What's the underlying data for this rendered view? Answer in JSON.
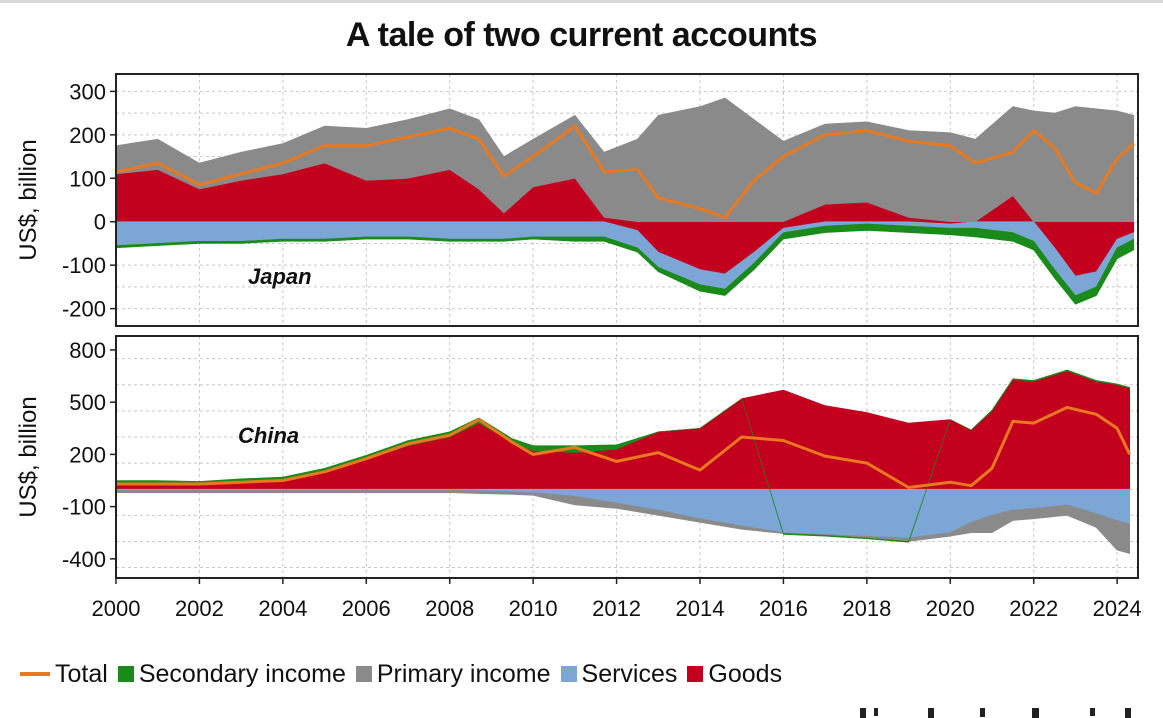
{
  "title": "A tale of two current accounts",
  "colors": {
    "total": "#e8791e",
    "secondary": "#1a8a1a",
    "primary": "#8a8a8a",
    "services": "#7ba6d6",
    "goods": "#c4001f"
  },
  "legend": [
    {
      "key": "total",
      "label": "Total",
      "kind": "line"
    },
    {
      "key": "secondary",
      "label": "Secondary income",
      "kind": "box"
    },
    {
      "key": "primary",
      "label": "Primary income",
      "kind": "box"
    },
    {
      "key": "services",
      "label": "Services",
      "kind": "box"
    },
    {
      "key": "goods",
      "label": "Goods",
      "kind": "box"
    }
  ],
  "chart_data": [
    {
      "type": "area",
      "panel": "Japan",
      "ylabel": "US$, billion",
      "ylim": [
        -240,
        340
      ],
      "yticks": [
        300,
        200,
        100,
        0,
        -100,
        -200
      ],
      "xlim": [
        2000,
        2024.5
      ],
      "xticks": [
        2000,
        2002,
        2004,
        2006,
        2008,
        2010,
        2012,
        2014,
        2016,
        2018,
        2020,
        2022,
        2024
      ],
      "x": [
        2000,
        2001,
        2002,
        2003,
        2004,
        2005,
        2006,
        2007,
        2008,
        2008.7,
        2009.3,
        2010,
        2011,
        2011.7,
        2012.5,
        2013,
        2014,
        2014.6,
        2015.3,
        2016,
        2017,
        2018,
        2019,
        2020,
        2020.6,
        2021.5,
        2022,
        2022.5,
        2023,
        2023.5,
        2024,
        2024.4
      ],
      "goods": [
        110,
        120,
        75,
        95,
        110,
        135,
        95,
        100,
        120,
        75,
        20,
        80,
        100,
        10,
        -20,
        -70,
        -110,
        -120,
        -70,
        -15,
        40,
        45,
        10,
        -5,
        0,
        60,
        0,
        -60,
        -125,
        -115,
        -40,
        -25
      ],
      "services": [
        -55,
        -50,
        -45,
        -45,
        -40,
        -40,
        -35,
        -35,
        -40,
        -40,
        -40,
        -35,
        -35,
        -35,
        -40,
        -35,
        -35,
        -35,
        -25,
        -10,
        -10,
        -5,
        -10,
        -10,
        -15,
        -25,
        -45,
        -50,
        -45,
        -35,
        -20,
        -15
      ],
      "primary": [
        65,
        70,
        60,
        65,
        70,
        85,
        120,
        135,
        140,
        160,
        130,
        110,
        145,
        150,
        190,
        245,
        265,
        285,
        235,
        185,
        185,
        185,
        200,
        205,
        190,
        205,
        255,
        250,
        265,
        260,
        255,
        245
      ],
      "secondary": [
        -5,
        -5,
        -5,
        -5,
        -5,
        -5,
        -5,
        -5,
        -5,
        -5,
        -5,
        -5,
        -10,
        -10,
        -10,
        -10,
        -15,
        -15,
        -15,
        -15,
        -15,
        -15,
        -15,
        -15,
        -20,
        -20,
        -20,
        -20,
        -20,
        -20,
        -25,
        -25
      ],
      "total": [
        115,
        135,
        85,
        110,
        135,
        175,
        175,
        195,
        215,
        190,
        105,
        150,
        220,
        115,
        120,
        55,
        30,
        10,
        95,
        150,
        200,
        210,
        185,
        175,
        135,
        160,
        210,
        170,
        90,
        65,
        145,
        180
      ]
    },
    {
      "type": "area",
      "panel": "China",
      "ylabel": "US$, billion",
      "ylim": [
        -510,
        880
      ],
      "yticks": [
        800,
        500,
        200,
        -100,
        -400
      ],
      "xlim": [
        2000,
        2024.5
      ],
      "xticks": [
        2000,
        2002,
        2004,
        2006,
        2008,
        2010,
        2012,
        2014,
        2016,
        2018,
        2020,
        2022,
        2024
      ],
      "x": [
        2000,
        2001,
        2002,
        2003,
        2004,
        2005,
        2006,
        2007,
        2008,
        2008.7,
        2009.5,
        2010,
        2011,
        2012,
        2013,
        2014,
        2015,
        2016,
        2017,
        2018,
        2019,
        2020,
        2020.5,
        2021,
        2021.5,
        2022,
        2022.8,
        2023.5,
        2024,
        2024.3
      ],
      "goods": [
        35,
        35,
        30,
        40,
        50,
        100,
        170,
        250,
        300,
        380,
        270,
        220,
        210,
        230,
        330,
        350,
        520,
        570,
        480,
        440,
        380,
        400,
        340,
        450,
        630,
        620,
        680,
        620,
        600,
        580
      ],
      "services": [
        -5,
        -5,
        -5,
        -5,
        -5,
        -5,
        -5,
        -5,
        -5,
        -10,
        -15,
        -20,
        -40,
        -80,
        -120,
        -170,
        -210,
        -250,
        -260,
        -270,
        -280,
        -250,
        -190,
        -150,
        -120,
        -110,
        -90,
        -140,
        -180,
        -200
      ],
      "primary": [
        -15,
        -15,
        -15,
        -15,
        -15,
        -15,
        -15,
        -15,
        -15,
        -15,
        -15,
        -15,
        -50,
        -30,
        -30,
        -20,
        -20,
        -5,
        -5,
        -10,
        -20,
        -20,
        -60,
        -100,
        -60,
        -60,
        -60,
        -80,
        -170,
        -170
      ],
      "secondary": [
        15,
        15,
        15,
        20,
        20,
        20,
        25,
        30,
        30,
        30,
        20,
        30,
        40,
        25,
        0,
        0,
        0,
        -5,
        -5,
        -5,
        -5,
        0,
        0,
        5,
        5,
        5,
        5,
        5,
        5,
        5
      ],
      "total": [
        30,
        30,
        30,
        40,
        50,
        100,
        175,
        260,
        310,
        400,
        270,
        200,
        240,
        160,
        210,
        110,
        300,
        280,
        190,
        150,
        10,
        40,
        20,
        120,
        390,
        380,
        470,
        430,
        350,
        200
      ]
    }
  ]
}
